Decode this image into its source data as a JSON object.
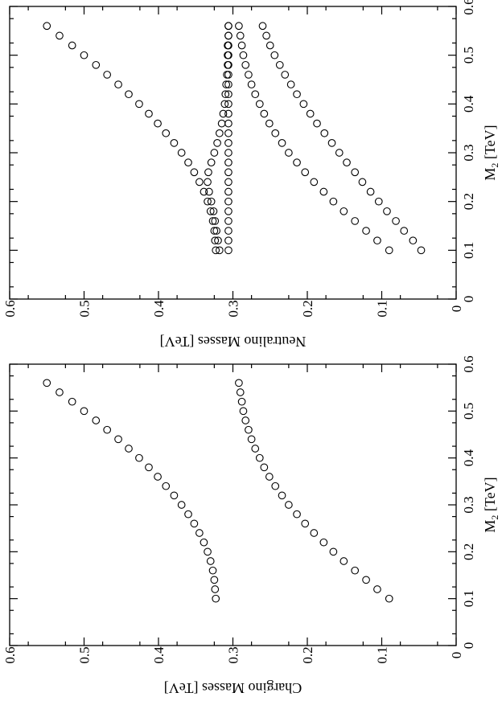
{
  "chart_data": [
    {
      "type": "scatter",
      "xlabel_main": "M",
      "xlabel_sub": "2",
      "xlabel_unit": " [TeV]",
      "ylabel": "Chargino Masses [TeV]",
      "xlim": [
        0,
        0.6
      ],
      "ylim": [
        0,
        0.6
      ],
      "xticks": [
        "0",
        "0.1",
        "0.2",
        "0.3",
        "0.4",
        "0.5",
        "0.6"
      ],
      "yticks": [
        "0",
        "0.1",
        "0.2",
        "0.3",
        "0.4",
        "0.5",
        "0.6"
      ],
      "grid": false,
      "x": [
        0.1,
        0.12,
        0.14,
        0.16,
        0.18,
        0.2,
        0.22,
        0.24,
        0.26,
        0.28,
        0.3,
        0.32,
        0.34,
        0.36,
        0.38,
        0.4,
        0.42,
        0.44,
        0.46,
        0.48,
        0.5,
        0.52,
        0.54,
        0.56
      ],
      "series": [
        {
          "values": [
            0.09,
            0.106,
            0.121,
            0.136,
            0.151,
            0.165,
            0.178,
            0.191,
            0.203,
            0.214,
            0.225,
            0.234,
            0.243,
            0.251,
            0.258,
            0.264,
            0.27,
            0.275,
            0.279,
            0.283,
            0.286,
            0.288,
            0.29,
            0.292
          ]
        },
        {
          "values": [
            0.323,
            0.324,
            0.325,
            0.327,
            0.33,
            0.334,
            0.339,
            0.345,
            0.352,
            0.36,
            0.369,
            0.379,
            0.39,
            0.401,
            0.413,
            0.426,
            0.44,
            0.454,
            0.469,
            0.484,
            0.5,
            0.516,
            0.533,
            0.55
          ]
        }
      ]
    },
    {
      "type": "scatter",
      "xlabel_main": "M",
      "xlabel_sub": "2",
      "xlabel_unit": " [TeV]",
      "ylabel": "Neutralino Masses [TeV]",
      "xlim": [
        0,
        0.6
      ],
      "ylim": [
        0,
        0.6
      ],
      "xticks": [
        "0",
        "0.1",
        "0.2",
        "0.3",
        "0.4",
        "0.5",
        "0.6"
      ],
      "yticks": [
        "0",
        "0.1",
        "0.2",
        "0.3",
        "0.4",
        "0.5",
        "0.6"
      ],
      "grid": false,
      "x": [
        0.1,
        0.12,
        0.14,
        0.16,
        0.18,
        0.2,
        0.22,
        0.24,
        0.26,
        0.28,
        0.3,
        0.32,
        0.34,
        0.36,
        0.38,
        0.4,
        0.42,
        0.44,
        0.46,
        0.48,
        0.5,
        0.52,
        0.54,
        0.56
      ],
      "series": [
        {
          "values": [
            0.047,
            0.058,
            0.07,
            0.081,
            0.093,
            0.104,
            0.115,
            0.126,
            0.136,
            0.147,
            0.157,
            0.167,
            0.177,
            0.187,
            0.196,
            0.205,
            0.214,
            0.222,
            0.23,
            0.237,
            0.244,
            0.25,
            0.255,
            0.26
          ]
        },
        {
          "values": [
            0.09,
            0.106,
            0.121,
            0.136,
            0.151,
            0.165,
            0.178,
            0.191,
            0.203,
            0.214,
            0.225,
            0.234,
            0.243,
            0.251,
            0.258,
            0.264,
            0.27,
            0.275,
            0.279,
            0.283,
            0.286,
            0.288,
            0.29,
            0.292
          ]
        },
        {
          "values": [
            0.306,
            0.306,
            0.306,
            0.306,
            0.306,
            0.306,
            0.306,
            0.306,
            0.306,
            0.306,
            0.306,
            0.306,
            0.306,
            0.306,
            0.306,
            0.306,
            0.306,
            0.306,
            0.306,
            0.306,
            0.306,
            0.306,
            0.306,
            0.306
          ]
        },
        {
          "values": [
            0.318,
            0.32,
            0.322,
            0.324,
            0.326,
            0.329,
            0.332,
            0.334,
            0.333,
            0.329,
            0.325,
            0.321,
            0.318,
            0.315,
            0.313,
            0.311,
            0.31,
            0.309,
            0.308,
            0.307,
            0.307,
            0.307,
            0.306,
            0.306
          ]
        },
        {
          "values": [
            0.323,
            0.324,
            0.325,
            0.327,
            0.33,
            0.334,
            0.339,
            0.345,
            0.352,
            0.36,
            0.369,
            0.379,
            0.39,
            0.401,
            0.413,
            0.426,
            0.44,
            0.454,
            0.469,
            0.484,
            0.5,
            0.516,
            0.533,
            0.55
          ]
        }
      ]
    }
  ]
}
